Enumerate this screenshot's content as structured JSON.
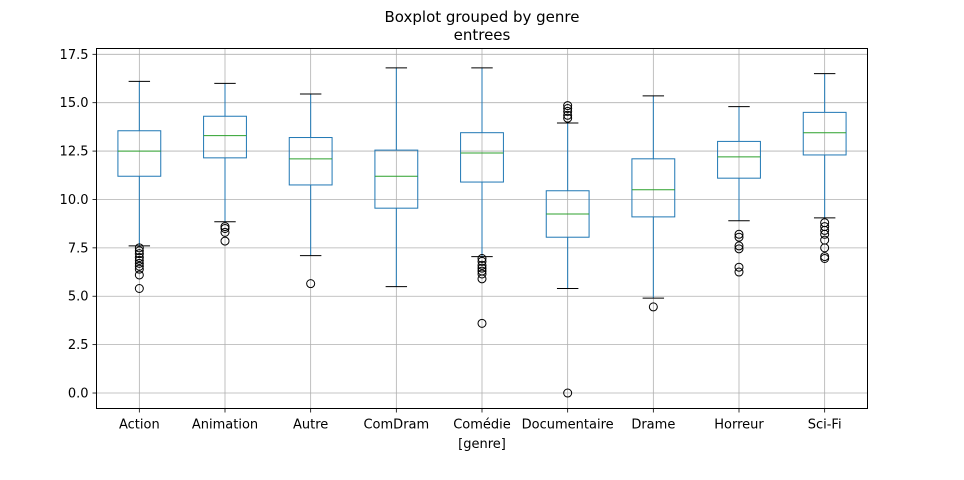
{
  "chart_data": {
    "type": "boxplot",
    "title": "Boxplot grouped by genre",
    "subtitle": "entrees",
    "xlabel": "[genre]",
    "ylabel": "",
    "ylim": [
      -0.8,
      17.8
    ],
    "yticks": [
      0.0,
      2.5,
      5.0,
      7.5,
      10.0,
      12.5,
      15.0,
      17.5
    ],
    "ytick_labels": [
      "0.0",
      "2.5",
      "5.0",
      "7.5",
      "10.0",
      "12.5",
      "15.0",
      "17.5"
    ],
    "grid": true,
    "colors": {
      "box": "#1f77b4",
      "median": "#2ca02c",
      "whisker_cap": "#000000",
      "grid": "#b0b0b0"
    },
    "categories": [
      "Action",
      "Animation",
      "Autre",
      "ComDram",
      "Comédie",
      "Documentaire",
      "Drame",
      "Horreur",
      "Sci-Fi"
    ],
    "boxes": [
      {
        "q1": 11.2,
        "median": 12.5,
        "q3": 13.55,
        "whislo": 7.6,
        "whishi": 16.1,
        "fliers": [
          7.5,
          7.35,
          7.2,
          7.0,
          6.85,
          6.7,
          6.55,
          6.4,
          6.1,
          5.4
        ]
      },
      {
        "q1": 12.15,
        "median": 13.3,
        "q3": 14.3,
        "whislo": 8.85,
        "whishi": 16.0,
        "fliers": [
          8.6,
          8.5,
          8.3,
          7.85
        ]
      },
      {
        "q1": 10.75,
        "median": 12.1,
        "q3": 13.2,
        "whislo": 7.1,
        "whishi": 15.45,
        "fliers": [
          5.65
        ]
      },
      {
        "q1": 9.55,
        "median": 11.2,
        "q3": 12.55,
        "whislo": 5.5,
        "whishi": 16.8,
        "fliers": []
      },
      {
        "q1": 10.9,
        "median": 12.4,
        "q3": 13.45,
        "whislo": 7.05,
        "whishi": 16.8,
        "fliers": [
          6.95,
          6.8,
          6.6,
          6.45,
          6.3,
          6.15,
          5.9,
          3.6
        ]
      },
      {
        "q1": 8.05,
        "median": 9.25,
        "q3": 10.45,
        "whislo": 5.4,
        "whishi": 13.95,
        "fliers": [
          14.2,
          14.35,
          14.55,
          14.7,
          14.85,
          0.0
        ]
      },
      {
        "q1": 9.1,
        "median": 10.5,
        "q3": 12.1,
        "whislo": 4.9,
        "whishi": 15.35,
        "fliers": [
          4.45
        ]
      },
      {
        "q1": 11.1,
        "median": 12.2,
        "q3": 13.0,
        "whislo": 8.9,
        "whishi": 14.8,
        "fliers": [
          8.2,
          8.05,
          7.6,
          7.45,
          6.5,
          6.25
        ]
      },
      {
        "q1": 12.3,
        "median": 13.45,
        "q3": 14.5,
        "whislo": 9.05,
        "whishi": 16.5,
        "fliers": [
          8.8,
          8.6,
          8.4,
          8.2,
          7.9,
          7.5,
          7.05,
          6.95
        ]
      }
    ]
  }
}
